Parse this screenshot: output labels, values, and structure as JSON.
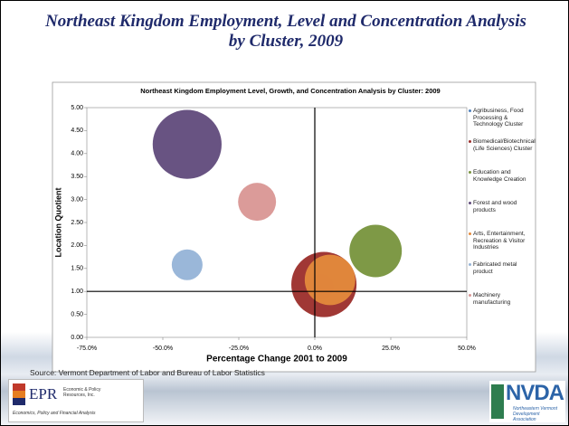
{
  "slide_title": "Northeast Kingdom Employment, Level and Concentration Analysis by Cluster, 2009",
  "chart_data": {
    "type": "bubble",
    "title": "Northeast Kingdom Employment Level, Growth, and Concentration Analysis by Cluster: 2009",
    "x_label": "Percentage Change 2001 to 2009",
    "y_label": "Location Quotient",
    "xlim": [
      -75,
      50
    ],
    "xticks": [
      {
        "value": -75,
        "label": "-75.0%"
      },
      {
        "value": -50,
        "label": "-50.0%"
      },
      {
        "value": -25,
        "label": "-25.0%"
      },
      {
        "value": 0,
        "label": "0.0%"
      },
      {
        "value": 25,
        "label": "25.0%"
      },
      {
        "value": 50,
        "label": "50.0%"
      }
    ],
    "ylim": [
      0,
      5
    ],
    "yticks": [
      {
        "value": 0,
        "label": "0.00"
      },
      {
        "value": 0.5,
        "label": "0.50"
      },
      {
        "value": 1,
        "label": "1.00"
      },
      {
        "value": 1.5,
        "label": "1.50"
      },
      {
        "value": 2,
        "label": "2.00"
      },
      {
        "value": 2.5,
        "label": "2.50"
      },
      {
        "value": 3,
        "label": "3.00"
      },
      {
        "value": 3.5,
        "label": "3.50"
      },
      {
        "value": 4,
        "label": "4.00"
      },
      {
        "value": 4.5,
        "label": "4.50"
      },
      {
        "value": 5,
        "label": "5.00"
      }
    ],
    "reference_lines": {
      "x": 0,
      "y": 1
    },
    "legend": "right",
    "series": [
      {
        "name": "Agribusiness, Food Processing & Technology Cluster",
        "color": "#4f81bd",
        "x": 2,
        "y": 1.1,
        "size": 200
      },
      {
        "name": "Biomedical/Biotechnical (Life Sciences) Cluster",
        "color": "#9b2d2a",
        "x": 3,
        "y": 1.15,
        "size": 1300
      },
      {
        "name": "Education and Knowledge Creation",
        "color": "#77933c",
        "x": 20,
        "y": 1.88,
        "size": 840
      },
      {
        "name": "Forest and wood products",
        "color": "#604a7b",
        "x": -42,
        "y": 4.2,
        "size": 1450
      },
      {
        "name": "Arts, Entertainment, Recreation & Visitor Industries",
        "color": "#e48a3c",
        "x": 5,
        "y": 1.25,
        "size": 780
      },
      {
        "name": "Fabricated metal product",
        "color": "#95b3d7",
        "x": -42,
        "y": 1.58,
        "size": 290
      },
      {
        "name": "Machinery manufacturing",
        "color": "#d99694",
        "x": -19,
        "y": 2.95,
        "size": 440
      }
    ]
  },
  "source": "Source: Vermont Department of Labor and  Bureau of Labor Statistics",
  "logos": {
    "epr": {
      "name": "EPR",
      "text": "Economic & Policy Resources, Inc.",
      "tagline": "Economics, Policy and Financial Analysis"
    },
    "nvda": {
      "name": "NVDA",
      "text": "Northeastern Vermont Development Association"
    }
  }
}
